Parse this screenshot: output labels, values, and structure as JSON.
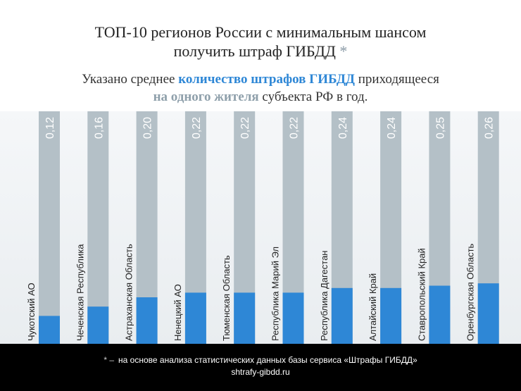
{
  "title": {
    "line1": "ТОП-10 регионов России с минимальным шансом",
    "line2": "получить штраф ГИБДД",
    "star": "*"
  },
  "subtitle": {
    "part1": "Указано среднее ",
    "highlight1": "количество штрафов ГИБДД",
    "part2": " приходящееся",
    "highlight2": "на одного жителя",
    "part3": " субъекта РФ в год."
  },
  "chart_data": {
    "type": "bar",
    "categories": [
      "Чукотский АО",
      "Чеченская Республика",
      "Астраханская Область",
      "Ненецкий АО",
      "Тюменская Область",
      "Республика Марий Эл",
      "Республика Дагестан",
      "Алтайский Край",
      "Ставропольский Край",
      "Оренбургская Область"
    ],
    "values": [
      0.12,
      0.16,
      0.2,
      0.22,
      0.22,
      0.22,
      0.24,
      0.24,
      0.25,
      0.26
    ],
    "value_labels": [
      "0,12",
      "0,16",
      "0,20",
      "0,22",
      "0,22",
      "0,22",
      "0,24",
      "0,24",
      "0,25",
      "0,26"
    ],
    "ylim": [
      0,
      1
    ],
    "bar_color": "#2e87d6",
    "track_color": "#b4c0c7"
  },
  "footer": {
    "star": "* –",
    "note": "на основе анализа статистических данных базы сервиса «Штрафы ГИБДД»",
    "site": "shtrafy-gibdd.ru"
  }
}
